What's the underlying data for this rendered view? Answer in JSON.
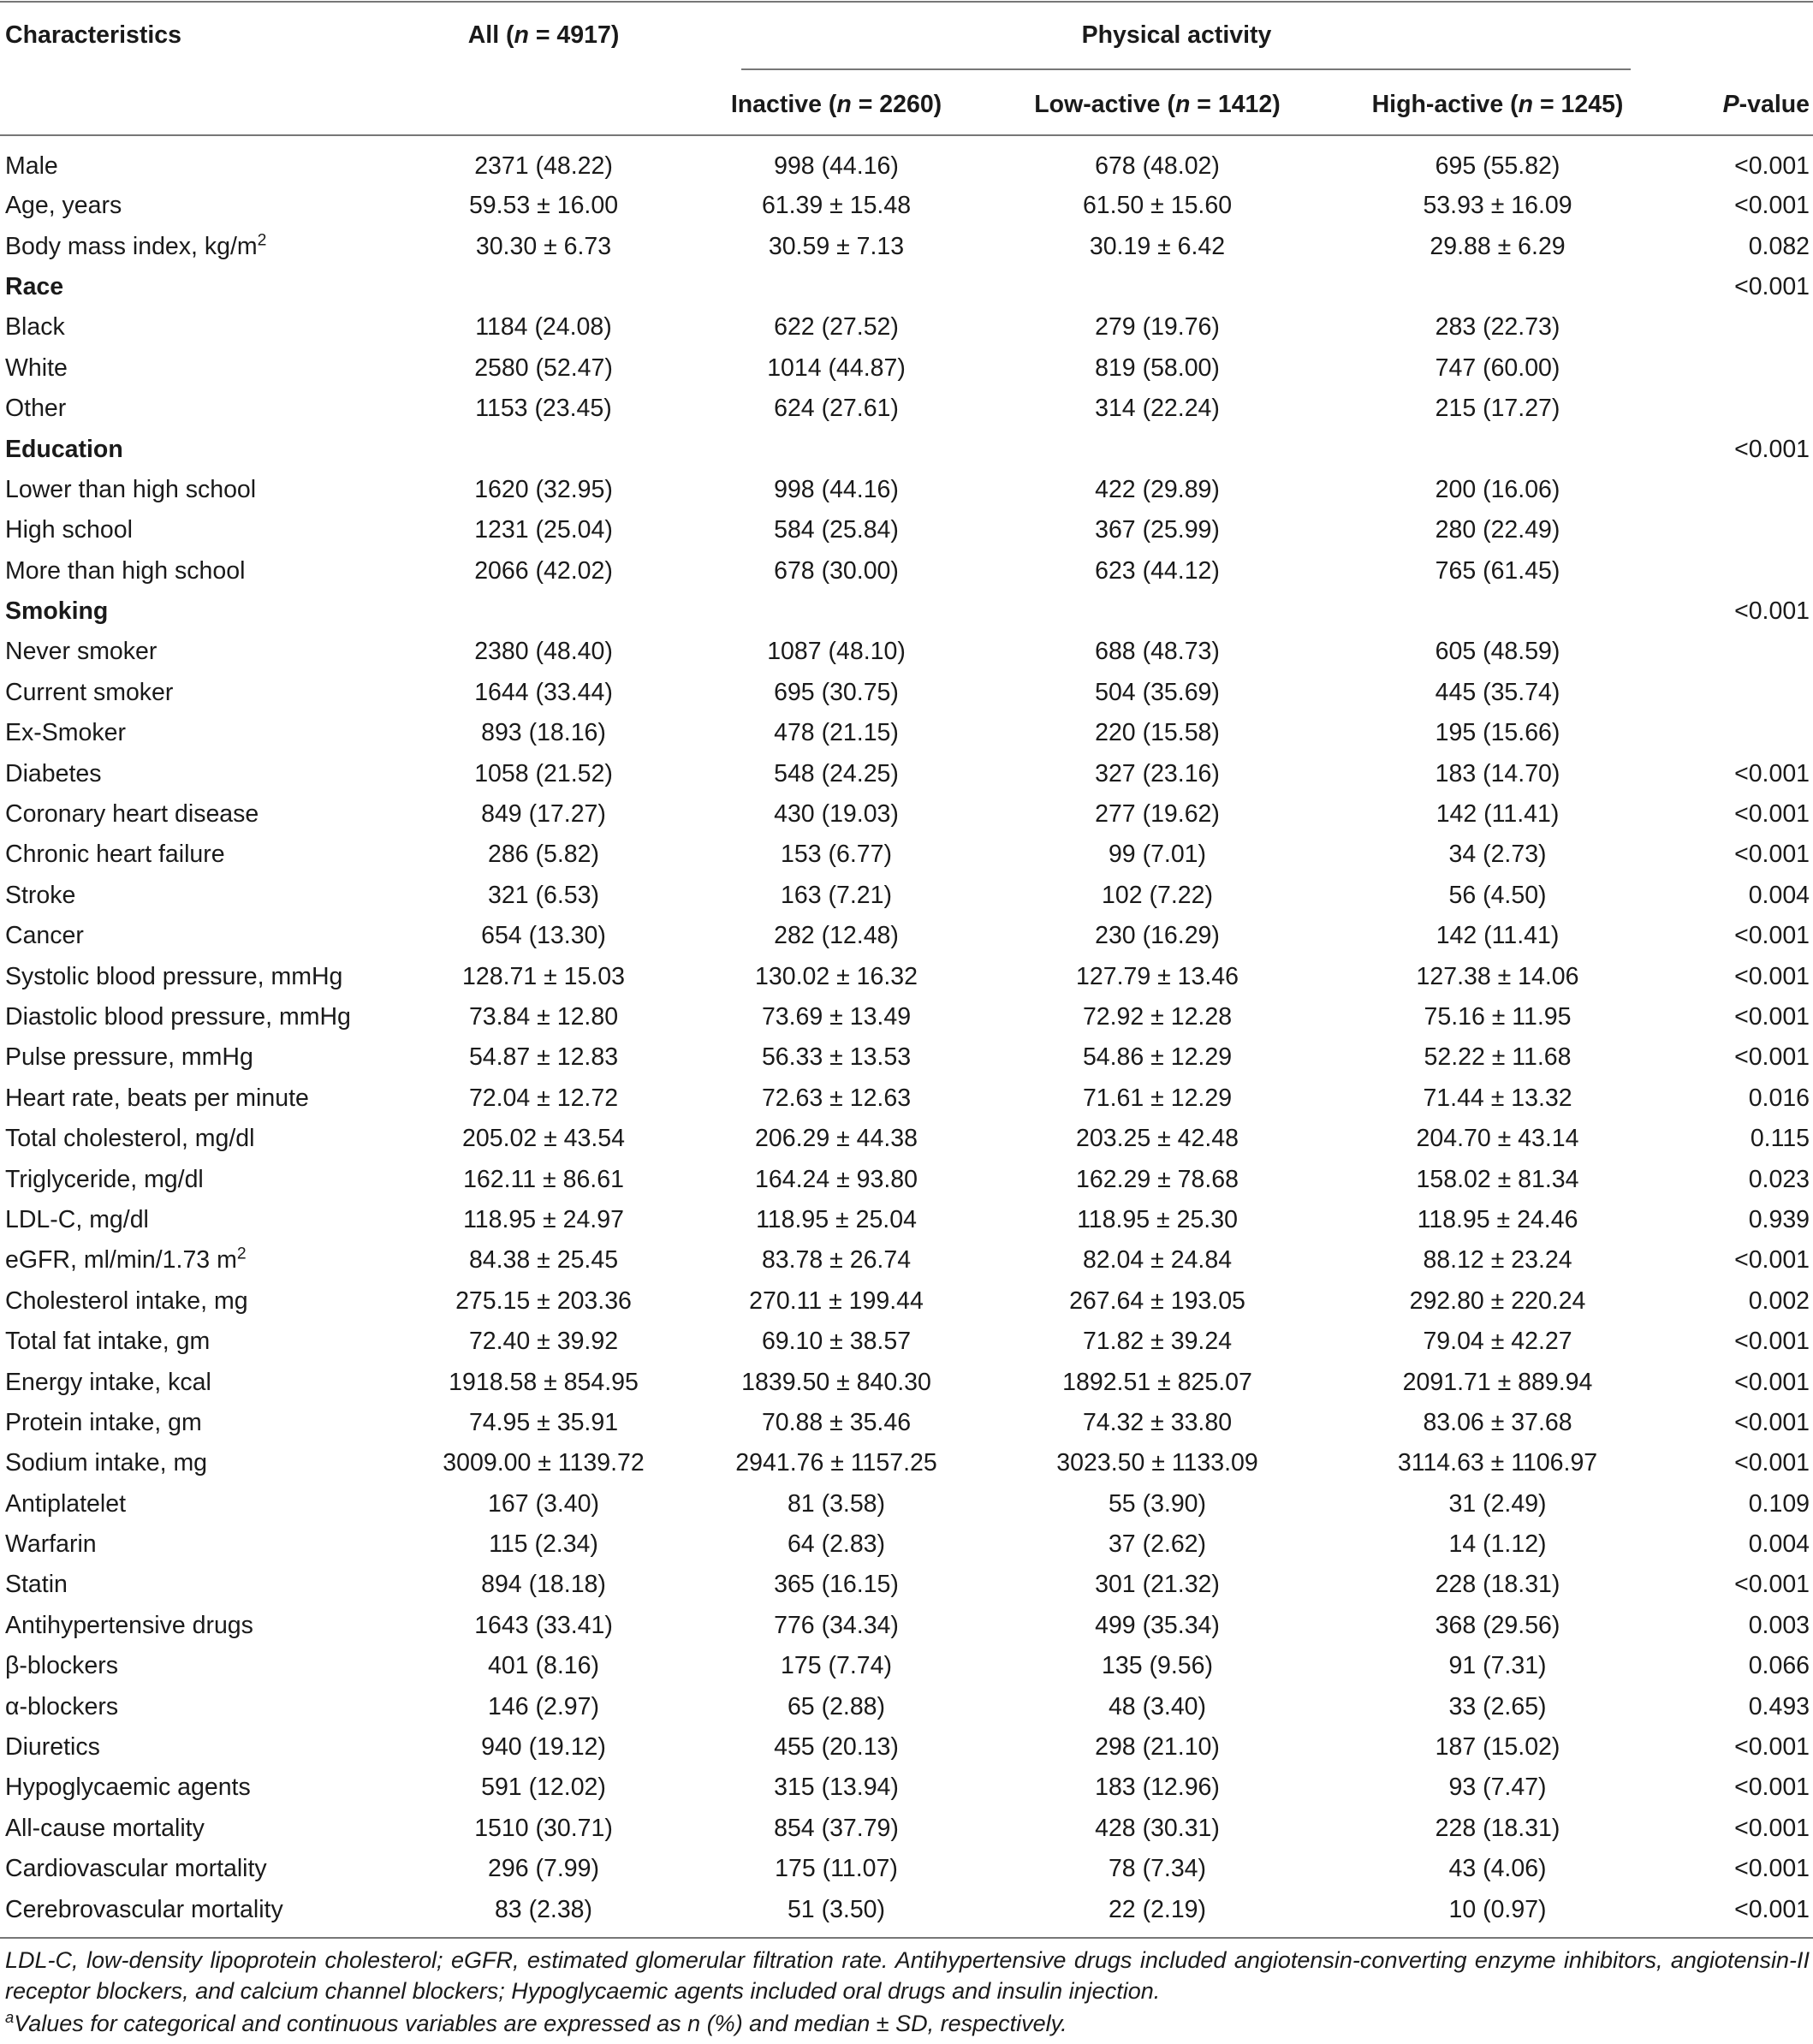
{
  "header": {
    "characteristics": "Characteristics",
    "all_pre": "All (",
    "all_n": "n",
    "all_post": " = 4917)",
    "physical_activity": "Physical activity",
    "inactive_pre": "Inactive (",
    "inactive_n": "n",
    "inactive_post": " = 2260)",
    "low_pre": "Low-active (",
    "low_n": "n",
    "low_post": " = 1412)",
    "high_pre": "High-active (",
    "high_n": "n",
    "high_post": " = 1245)",
    "p_p": "P",
    "p_post": "-value"
  },
  "rows": [
    {
      "label": "Male",
      "all": "2371 (48.22)",
      "inactive": "998 (44.16)",
      "low": "678 (48.02)",
      "high": "695 (55.82)",
      "p": "<0.001"
    },
    {
      "label": "Age, years",
      "all": "59.53 ± 16.00",
      "inactive": "61.39 ± 15.48",
      "low": "61.50 ± 15.60",
      "high": "53.93 ± 16.09",
      "p": "<0.001"
    },
    {
      "label": "Body mass index, kg/m",
      "sup": "2",
      "all": "30.30 ± 6.73",
      "inactive": "30.59 ± 7.13",
      "low": "30.19 ± 6.42",
      "high": "29.88 ± 6.29",
      "p": "0.082"
    },
    {
      "label": "Race",
      "section": true,
      "all": "",
      "inactive": "",
      "low": "",
      "high": "",
      "p": "<0.001"
    },
    {
      "label": "Black",
      "all": "1184 (24.08)",
      "inactive": "622 (27.52)",
      "low": "279 (19.76)",
      "high": "283 (22.73)",
      "p": ""
    },
    {
      "label": "White",
      "all": "2580 (52.47)",
      "inactive": "1014 (44.87)",
      "low": "819 (58.00)",
      "high": "747 (60.00)",
      "p": ""
    },
    {
      "label": "Other",
      "all": "1153 (23.45)",
      "inactive": "624 (27.61)",
      "low": "314 (22.24)",
      "high": "215 (17.27)",
      "p": ""
    },
    {
      "label": "Education",
      "section": true,
      "all": "",
      "inactive": "",
      "low": "",
      "high": "",
      "p": "<0.001"
    },
    {
      "label": "Lower than high school",
      "all": "1620 (32.95)",
      "inactive": "998 (44.16)",
      "low": "422 (29.89)",
      "high": "200 (16.06)",
      "p": ""
    },
    {
      "label": "High school",
      "all": "1231 (25.04)",
      "inactive": "584 (25.84)",
      "low": "367 (25.99)",
      "high": "280 (22.49)",
      "p": ""
    },
    {
      "label": "More than high school",
      "all": "2066 (42.02)",
      "inactive": "678 (30.00)",
      "low": "623 (44.12)",
      "high": "765 (61.45)",
      "p": ""
    },
    {
      "label": "Smoking",
      "section": true,
      "all": "",
      "inactive": "",
      "low": "",
      "high": "",
      "p": "<0.001"
    },
    {
      "label": "Never smoker",
      "all": "2380 (48.40)",
      "inactive": "1087 (48.10)",
      "low": "688 (48.73)",
      "high": "605 (48.59)",
      "p": ""
    },
    {
      "label": "Current smoker",
      "all": "1644 (33.44)",
      "inactive": "695 (30.75)",
      "low": "504 (35.69)",
      "high": "445 (35.74)",
      "p": ""
    },
    {
      "label": "Ex-Smoker",
      "all": "893 (18.16)",
      "inactive": "478 (21.15)",
      "low": "220 (15.58)",
      "high": "195 (15.66)",
      "p": ""
    },
    {
      "label": "Diabetes",
      "all": "1058 (21.52)",
      "inactive": "548 (24.25)",
      "low": "327 (23.16)",
      "high": "183 (14.70)",
      "p": "<0.001"
    },
    {
      "label": "Coronary heart disease",
      "all": "849 (17.27)",
      "inactive": "430 (19.03)",
      "low": "277 (19.62)",
      "high": "142 (11.41)",
      "p": "<0.001"
    },
    {
      "label": "Chronic heart failure",
      "all": "286 (5.82)",
      "inactive": "153 (6.77)",
      "low": "99 (7.01)",
      "high": "34 (2.73)",
      "p": "<0.001"
    },
    {
      "label": "Stroke",
      "all": "321 (6.53)",
      "inactive": "163 (7.21)",
      "low": "102 (7.22)",
      "high": "56 (4.50)",
      "p": "0.004"
    },
    {
      "label": "Cancer",
      "all": "654 (13.30)",
      "inactive": "282 (12.48)",
      "low": "230 (16.29)",
      "high": "142 (11.41)",
      "p": "<0.001"
    },
    {
      "label": "Systolic blood pressure, mmHg",
      "all": "128.71 ± 15.03",
      "inactive": "130.02 ± 16.32",
      "low": "127.79 ± 13.46",
      "high": "127.38 ± 14.06",
      "p": "<0.001"
    },
    {
      "label": "Diastolic blood pressure, mmHg",
      "all": "73.84 ± 12.80",
      "inactive": "73.69 ± 13.49",
      "low": "72.92 ± 12.28",
      "high": "75.16 ± 11.95",
      "p": "<0.001"
    },
    {
      "label": "Pulse pressure, mmHg",
      "all": "54.87 ± 12.83",
      "inactive": "56.33 ± 13.53",
      "low": "54.86 ± 12.29",
      "high": "52.22 ± 11.68",
      "p": "<0.001"
    },
    {
      "label": "Heart rate, beats per minute",
      "all": "72.04 ± 12.72",
      "inactive": "72.63 ± 12.63",
      "low": "71.61 ± 12.29",
      "high": "71.44 ± 13.32",
      "p": "0.016"
    },
    {
      "label": "Total cholesterol, mg/dl",
      "all": "205.02 ± 43.54",
      "inactive": "206.29 ± 44.38",
      "low": "203.25 ± 42.48",
      "high": "204.70 ± 43.14",
      "p": "0.115"
    },
    {
      "label": "Triglyceride, mg/dl",
      "all": "162.11 ± 86.61",
      "inactive": "164.24 ± 93.80",
      "low": "162.29 ± 78.68",
      "high": "158.02 ± 81.34",
      "p": "0.023"
    },
    {
      "label": "LDL-C, mg/dl",
      "all": "118.95 ± 24.97",
      "inactive": "118.95 ± 25.04",
      "low": "118.95 ± 25.30",
      "high": "118.95 ± 24.46",
      "p": "0.939"
    },
    {
      "label": "eGFR, ml/min/1.73 m",
      "sup": "2",
      "all": "84.38 ± 25.45",
      "inactive": "83.78 ± 26.74",
      "low": "82.04 ± 24.84",
      "high": "88.12 ± 23.24",
      "p": "<0.001"
    },
    {
      "label": "Cholesterol intake, mg",
      "all": "275.15 ± 203.36",
      "inactive": "270.11 ± 199.44",
      "low": "267.64 ± 193.05",
      "high": "292.80 ± 220.24",
      "p": "0.002"
    },
    {
      "label": "Total fat intake, gm",
      "all": "72.40 ± 39.92",
      "inactive": "69.10 ± 38.57",
      "low": "71.82 ± 39.24",
      "high": "79.04 ± 42.27",
      "p": "<0.001"
    },
    {
      "label": "Energy intake, kcal",
      "all": "1918.58 ± 854.95",
      "inactive": "1839.50 ± 840.30",
      "low": "1892.51 ± 825.07",
      "high": "2091.71 ± 889.94",
      "p": "<0.001"
    },
    {
      "label": "Protein intake, gm",
      "all": "74.95 ± 35.91",
      "inactive": "70.88 ± 35.46",
      "low": "74.32 ± 33.80",
      "high": "83.06 ± 37.68",
      "p": "<0.001"
    },
    {
      "label": "Sodium intake, mg",
      "all": "3009.00 ± 1139.72",
      "inactive": "2941.76 ± 1157.25",
      "low": "3023.50 ± 1133.09",
      "high": "3114.63 ± 1106.97",
      "p": "<0.001"
    },
    {
      "label": "Antiplatelet",
      "all": "167 (3.40)",
      "inactive": "81 (3.58)",
      "low": "55 (3.90)",
      "high": "31 (2.49)",
      "p": "0.109"
    },
    {
      "label": "Warfarin",
      "all": "115 (2.34)",
      "inactive": "64 (2.83)",
      "low": "37 (2.62)",
      "high": "14 (1.12)",
      "p": "0.004"
    },
    {
      "label": "Statin",
      "all": "894 (18.18)",
      "inactive": "365 (16.15)",
      "low": "301 (21.32)",
      "high": "228 (18.31)",
      "p": "<0.001"
    },
    {
      "label": "Antihypertensive drugs",
      "all": "1643 (33.41)",
      "inactive": "776 (34.34)",
      "low": "499 (35.34)",
      "high": "368 (29.56)",
      "p": "0.003"
    },
    {
      "label": "β-blockers",
      "all": "401 (8.16)",
      "inactive": "175 (7.74)",
      "low": "135 (9.56)",
      "high": "91 (7.31)",
      "p": "0.066"
    },
    {
      "label": "α-blockers",
      "all": "146 (2.97)",
      "inactive": "65 (2.88)",
      "low": "48 (3.40)",
      "high": "33 (2.65)",
      "p": "0.493"
    },
    {
      "label": "Diuretics",
      "all": "940 (19.12)",
      "inactive": "455 (20.13)",
      "low": "298 (21.10)",
      "high": "187 (15.02)",
      "p": "<0.001"
    },
    {
      "label": "Hypoglycaemic agents",
      "all": "591 (12.02)",
      "inactive": "315 (13.94)",
      "low": "183 (12.96)",
      "high": "93 (7.47)",
      "p": "<0.001"
    },
    {
      "label": "All-cause mortality",
      "all": "1510 (30.71)",
      "inactive": "854 (37.79)",
      "low": "428 (30.31)",
      "high": "228 (18.31)",
      "p": "<0.001"
    },
    {
      "label": "Cardiovascular mortality",
      "all": "296 (7.99)",
      "inactive": "175 (11.07)",
      "low": "78 (7.34)",
      "high": "43 (4.06)",
      "p": "<0.001"
    },
    {
      "label": "Cerebrovascular mortality",
      "all": "83 (2.38)",
      "inactive": "51 (3.50)",
      "low": "22 (2.19)",
      "high": "10 (0.97)",
      "p": "<0.001"
    }
  ],
  "footnotes": {
    "abbrev": "LDL-C, low-density lipoprotein cholesterol; eGFR, estimated glomerular filtration rate. Antihypertensive drugs included angiotensin-converting enzyme inhibitors, angiotensin-II receptor blockers, and calcium channel blockers; Hypoglycaemic agents included oral drugs and insulin injection.",
    "values_sup": "a",
    "values_text": "Values for categorical and continuous variables are expressed as n (%) and median ± SD, respectively."
  }
}
